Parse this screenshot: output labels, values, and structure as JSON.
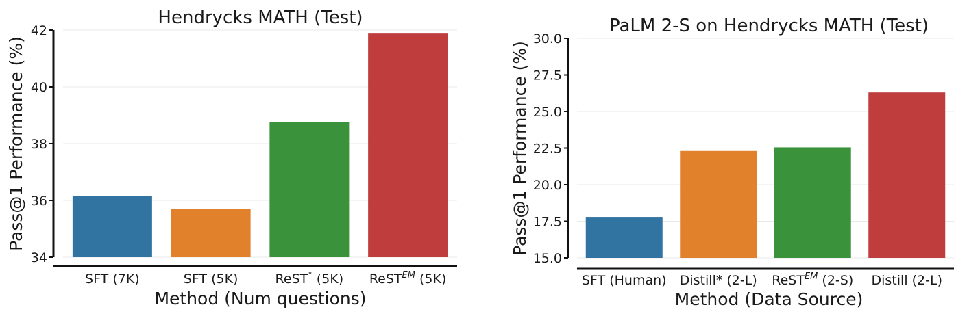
{
  "chart_data": [
    {
      "type": "bar",
      "title": "Hendrycks MATH (Test)",
      "xlabel": "Method (Num questions)",
      "ylabel": "Pass@1 Performance (%)",
      "categories": [
        {
          "base": "SFT (7K)",
          "sup": "",
          "suffix": ""
        },
        {
          "base": "SFT (5K)",
          "sup": "",
          "suffix": ""
        },
        {
          "base": "ReST",
          "sup": "*",
          "suffix": " (5K)"
        },
        {
          "base": "ReST",
          "sup": "EM",
          "suffix": " (5K)"
        }
      ],
      "values": [
        36.15,
        35.7,
        38.75,
        41.9
      ],
      "colors": [
        "#3274a1",
        "#e1812c",
        "#3a923a",
        "#c03d3e"
      ],
      "ylim": [
        34,
        42
      ],
      "yticks": [
        "34",
        "36",
        "38",
        "40",
        "42"
      ],
      "grid": true
    },
    {
      "type": "bar",
      "title": "PaLM 2-S on Hendrycks MATH (Test)",
      "xlabel": "Method (Data Source)",
      "ylabel": "Pass@1 Performance (%)",
      "categories": [
        {
          "base": "SFT (Human)",
          "sup": "",
          "suffix": ""
        },
        {
          "base": "Distill* (2-L)",
          "sup": "",
          "suffix": ""
        },
        {
          "base": "ReST",
          "sup": "EM",
          "suffix": " (2-S)"
        },
        {
          "base": "Distill (2-L)",
          "sup": "",
          "suffix": ""
        }
      ],
      "values": [
        17.8,
        22.3,
        22.55,
        26.3
      ],
      "colors": [
        "#3274a1",
        "#e1812c",
        "#3a923a",
        "#c03d3e"
      ],
      "ylim": [
        15,
        30
      ],
      "yticks": [
        "15.0",
        "17.5",
        "20.0",
        "22.5",
        "25.0",
        "27.5",
        "30.0"
      ],
      "grid": true
    }
  ]
}
